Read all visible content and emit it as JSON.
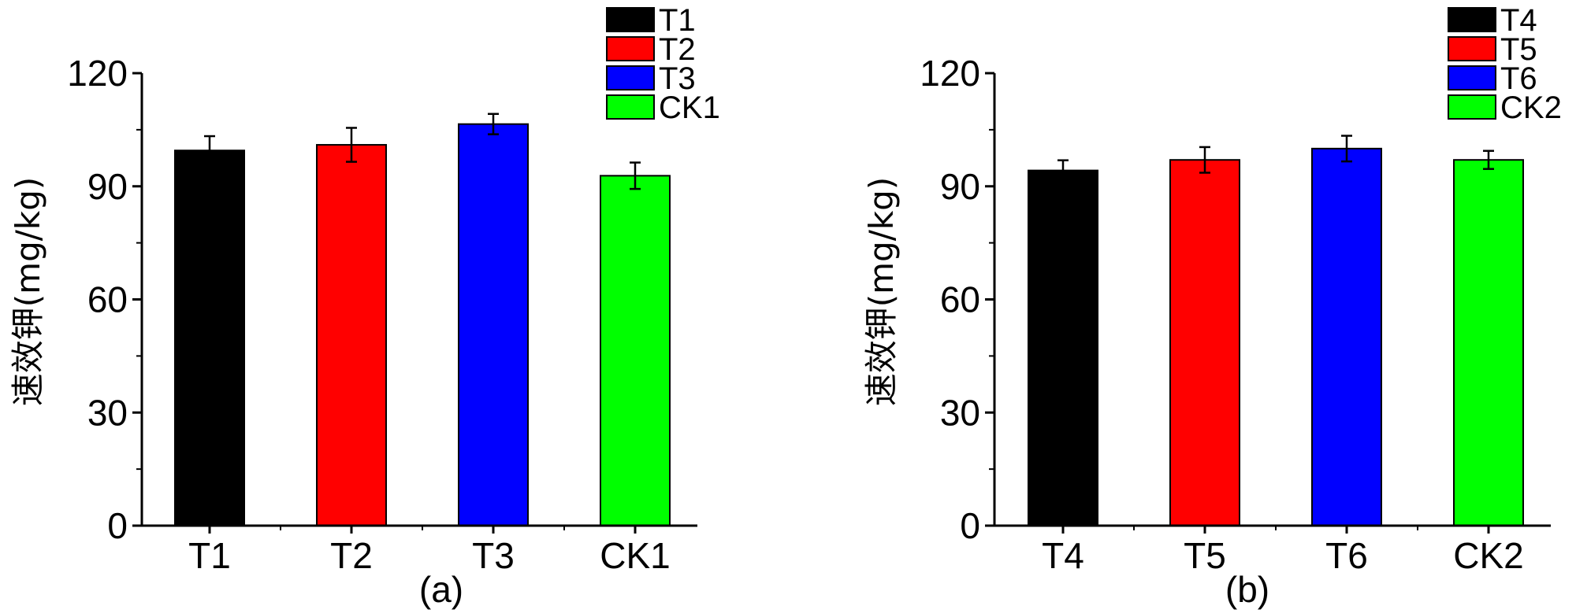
{
  "chart_data": [
    {
      "type": "bar",
      "panel_label": "(a)",
      "ylabel": "速效钾(mg/kg)",
      "xlabel": "",
      "ylim": [
        0,
        120
      ],
      "yticks": [
        0,
        30,
        60,
        90,
        120
      ],
      "categories": [
        "T1",
        "T2",
        "T3",
        "CK1"
      ],
      "values": [
        99.5,
        101,
        106.5,
        92.8
      ],
      "errors": [
        3.8,
        4.5,
        2.7,
        3.5
      ],
      "colors": [
        "#000000",
        "#ff0000",
        "#0000ff",
        "#00ff00"
      ],
      "legend": {
        "placement": "top-right",
        "entries": [
          {
            "label": "T1",
            "color": "#000000"
          },
          {
            "label": "T2",
            "color": "#ff0000"
          },
          {
            "label": "T3",
            "color": "#0000ff"
          },
          {
            "label": "CK1",
            "color": "#00ff00"
          }
        ]
      }
    },
    {
      "type": "bar",
      "panel_label": "(b)",
      "ylabel": "速效钾(mg/kg)",
      "xlabel": "",
      "ylim": [
        0,
        120
      ],
      "yticks": [
        0,
        30,
        60,
        90,
        120
      ],
      "categories": [
        "T4",
        "T5",
        "T6",
        "CK2"
      ],
      "values": [
        94.2,
        97,
        100,
        97
      ],
      "errors": [
        2.7,
        3.4,
        3.4,
        2.4
      ],
      "colors": [
        "#000000",
        "#ff0000",
        "#0000ff",
        "#00ff00"
      ],
      "legend": {
        "placement": "top-right",
        "entries": [
          {
            "label": "T4",
            "color": "#000000"
          },
          {
            "label": "T5",
            "color": "#ff0000"
          },
          {
            "label": "T6",
            "color": "#0000ff"
          },
          {
            "label": "CK2",
            "color": "#00ff00"
          }
        ]
      }
    }
  ]
}
